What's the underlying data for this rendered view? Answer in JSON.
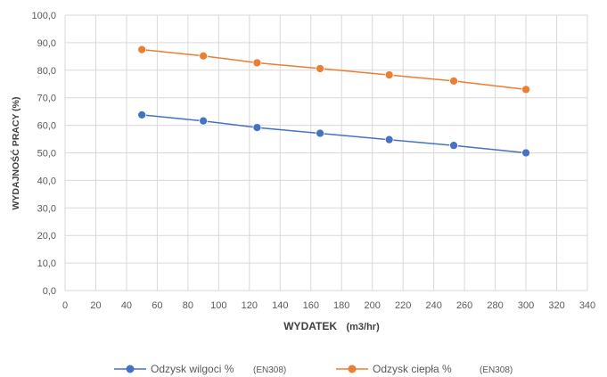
{
  "chart_data": {
    "type": "line",
    "xlabel": "WYDATEK",
    "xlabel_unit": "(m3/hr)",
    "ylabel": "WYDAJNOŚĆ PRACY (%)",
    "xlim": [
      0,
      340
    ],
    "ylim": [
      0,
      100
    ],
    "x_ticks": [
      "0",
      "20",
      "40",
      "60",
      "80",
      "100",
      "120",
      "140",
      "160",
      "180",
      "200",
      "220",
      "240",
      "260",
      "280",
      "300",
      "320",
      "340"
    ],
    "y_ticks": [
      "0,0",
      "10,0",
      "20,0",
      "30,0",
      "40,0",
      "50,0",
      "60,0",
      "70,0",
      "80,0",
      "90,0",
      "100,0"
    ],
    "grid": true,
    "legend_position": "bottom",
    "series": [
      {
        "name": "Odzysk wilgoci %",
        "note": "(EN308)",
        "color": "#4472C4",
        "x": [
          50,
          90,
          125,
          166,
          211,
          253,
          300
        ],
        "y": [
          63.8,
          61.6,
          59.2,
          57.1,
          54.8,
          52.7,
          50.0
        ]
      },
      {
        "name": "Odzysk ciepła %",
        "note": "(EN308)",
        "color": "#ED7D31",
        "x": [
          50,
          90,
          125,
          166,
          211,
          253,
          300
        ],
        "y": [
          87.5,
          85.2,
          82.7,
          80.6,
          78.3,
          76.1,
          73.0
        ]
      }
    ]
  }
}
